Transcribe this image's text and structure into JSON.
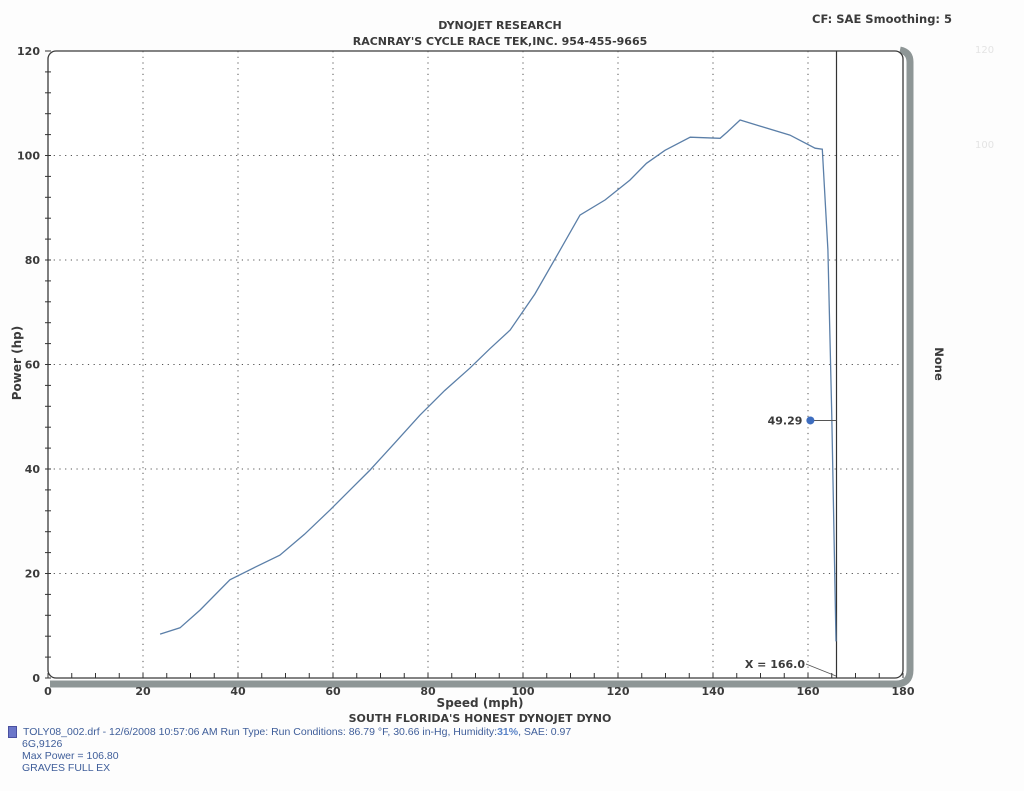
{
  "header": {
    "title_line1": "DYNOJET RESEARCH",
    "title_line2": "RACNRAY'S CYCLE RACE TEK,INC. 954-455-9665",
    "correction_factor": "CF: SAE  Smoothing: 5"
  },
  "axes": {
    "y_label": "Power (hp)",
    "x_label": "Speed (mph)",
    "x_subtitle": "SOUTH FLORIDA'S HONEST DYNOJET DYNO",
    "right_label": "None",
    "y_ticks": [
      "0",
      "20",
      "40",
      "60",
      "80",
      "100",
      "120"
    ],
    "x_ticks": [
      "0",
      "20",
      "40",
      "60",
      "80",
      "100",
      "120",
      "140",
      "160",
      "180"
    ]
  },
  "cursor": {
    "x_readout": "X = 166.0",
    "value_readout": "49.29"
  },
  "run_info": {
    "file_line": "TOLY08_002.drf - 12/6/2008 10:57:06 AM  Run Type:   Run Conditions: 86.79 °F, 30.66 in-Hg,  Humidity: ",
    "humidity": "31%",
    "sae": ", SAE: 0.97",
    "code": "6G,9126",
    "max_power": "Max Power = 106.80",
    "note": "GRAVES FULL EX",
    "legend_color": "#6b76c9"
  },
  "colors": {
    "curve": "#5b7fa8",
    "cursor_dot": "#3d6dbf",
    "frame": "#3a3a3a",
    "shadow": "#8e9696",
    "grid": "#555555"
  },
  "chart_data": {
    "type": "line",
    "title": "DYNOJET RESEARCH — RACNRAY'S CYCLE RACE TEK,INC. 954-455-9665",
    "subtitle": "SOUTH FLORIDA'S HONEST DYNOJET DYNO",
    "xlabel": "Speed (mph)",
    "ylabel": "Power (hp)",
    "xlim": [
      0,
      180
    ],
    "ylim": [
      0,
      120
    ],
    "grid": true,
    "x_ticks": [
      0,
      20,
      40,
      60,
      80,
      100,
      120,
      140,
      160,
      180
    ],
    "y_ticks": [
      0,
      20,
      40,
      60,
      80,
      100,
      120
    ],
    "annotations": [
      "X = 166.0",
      "49.29",
      "CF: SAE  Smoothing: 5",
      "Max Power = 106.80"
    ],
    "legend": [
      "TOLY08_002.drf - 12/6/2008 10:57:06 AM"
    ],
    "series": [
      {
        "name": "TOLY08_002.drf",
        "x": [
          23.6,
          27.8,
          32.0,
          38.3,
          43.6,
          48.8,
          54.0,
          59.4,
          63.6,
          67.8,
          73.0,
          78.3,
          83.5,
          88.8,
          93.0,
          97.3,
          102.5,
          107.8,
          112.0,
          117.3,
          122.5,
          126.0,
          129.9,
          135.2,
          141.5,
          143.0,
          145.7,
          150.0,
          156.2,
          161.5,
          163.0,
          164.2,
          165.0,
          165.9
        ],
        "values": [
          8.4,
          9.6,
          13.0,
          18.8,
          21.2,
          23.5,
          27.5,
          32.2,
          36.0,
          39.8,
          45.0,
          50.3,
          55.0,
          59.3,
          63.0,
          66.6,
          73.5,
          81.9,
          88.6,
          91.5,
          95.3,
          98.5,
          101.0,
          103.5,
          103.3,
          104.5,
          106.8,
          105.6,
          103.9,
          101.4,
          101.2,
          82.0,
          50.0,
          7.0
        ]
      }
    ],
    "cursor": {
      "x": 166.0,
      "value": 49.29
    },
    "max_power": 106.8
  }
}
